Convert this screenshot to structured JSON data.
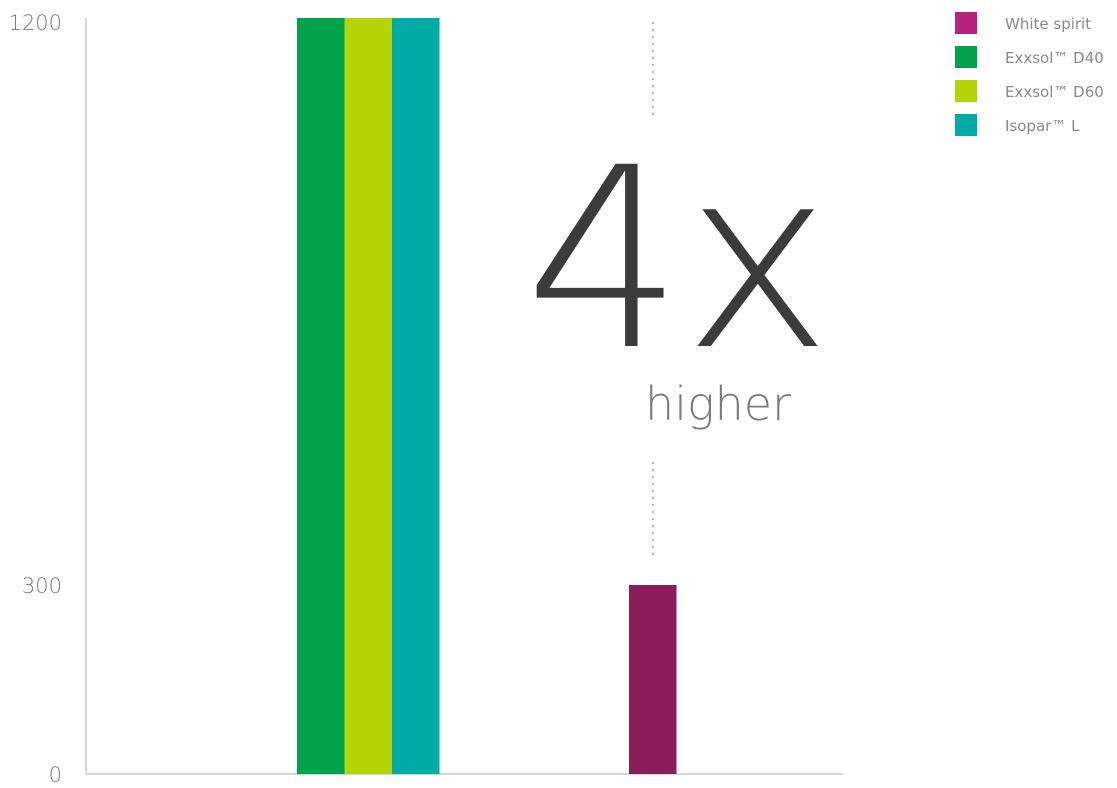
{
  "chart_data": {
    "type": "bar",
    "title": "",
    "xlabel": "",
    "ylabel": "",
    "ylim": [
      0,
      1200
    ],
    "yticks": [
      0,
      300,
      1200
    ],
    "grid": false,
    "legend_position": "top-right",
    "groups": [
      {
        "bars": [
          {
            "series": "Exxsol™ D40",
            "value": 1200
          },
          {
            "series": "Exxsol™ D60",
            "value": 1200
          },
          {
            "series": "Isopar™ L",
            "value": 1200
          }
        ]
      },
      {
        "bars": [
          {
            "series": "White spirit",
            "value": 300
          }
        ]
      }
    ],
    "series": [
      {
        "name": "White spirit",
        "color": "#8b1c5a",
        "legend_color": "#b5237e"
      },
      {
        "name": "Exxsol™ D40",
        "color": "#00a34c"
      },
      {
        "name": "Exxsol™ D60",
        "color": "#b5d406"
      },
      {
        "name": "Isopar™ L",
        "color": "#00aaa7"
      }
    ],
    "annotation": {
      "value": "4x",
      "label": "higher"
    }
  }
}
